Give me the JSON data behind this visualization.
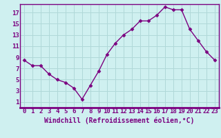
{
  "x": [
    0,
    1,
    2,
    3,
    4,
    5,
    6,
    7,
    8,
    9,
    10,
    11,
    12,
    13,
    14,
    15,
    16,
    17,
    18,
    19,
    20,
    21,
    22,
    23
  ],
  "y": [
    8.5,
    7.5,
    7.5,
    6.0,
    5.0,
    4.5,
    3.5,
    1.5,
    4.0,
    6.5,
    9.5,
    11.5,
    13.0,
    14.0,
    15.5,
    15.5,
    16.5,
    18.0,
    17.5,
    17.5,
    14.0,
    12.0,
    10.0,
    8.5
  ],
  "line_color": "#7b0080",
  "marker": "D",
  "marker_size": 2.5,
  "bg_color": "#cff0f0",
  "grid_color": "#b0d8d8",
  "xlabel": "Windchill (Refroidissement éolien,°C)",
  "xlim": [
    -0.5,
    23.5
  ],
  "ylim": [
    0,
    18.5
  ],
  "xticks": [
    0,
    1,
    2,
    3,
    4,
    5,
    6,
    7,
    8,
    9,
    10,
    11,
    12,
    13,
    14,
    15,
    16,
    17,
    18,
    19,
    20,
    21,
    22,
    23
  ],
  "yticks": [
    1,
    3,
    5,
    7,
    9,
    11,
    13,
    15,
    17
  ],
  "tick_color": "#7b0080",
  "tick_fontsize": 6.5,
  "xlabel_fontsize": 7,
  "spine_color": "#7b0080",
  "border_color": "#7b0080"
}
